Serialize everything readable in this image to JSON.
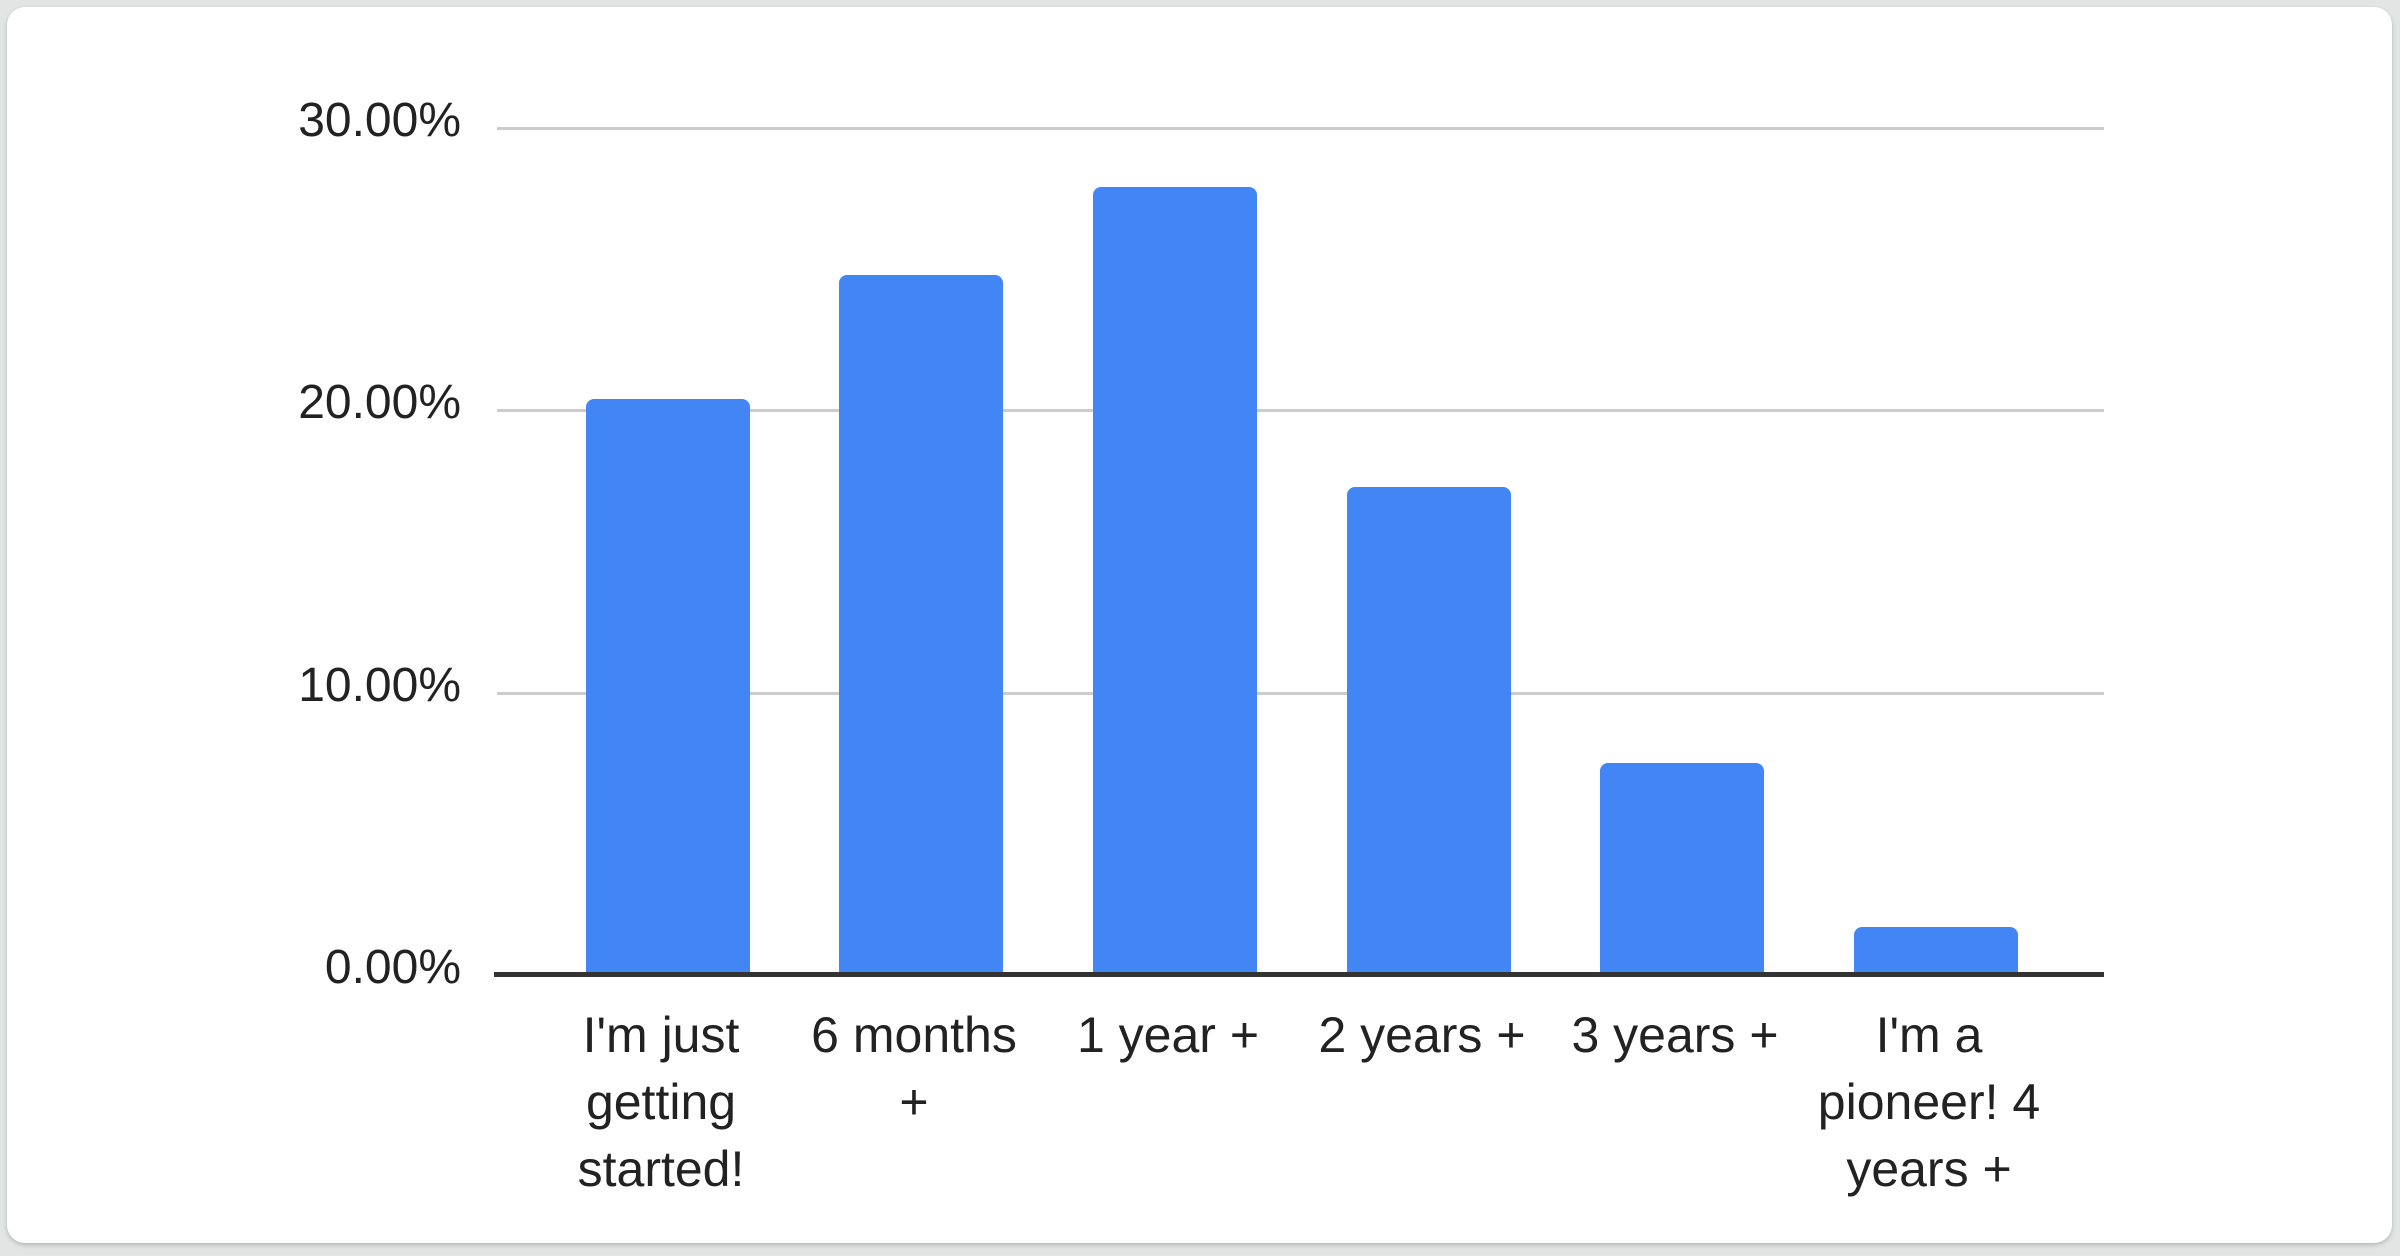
{
  "page": {
    "background_color": "#e2e5e4",
    "card_background_color": "#ffffff"
  },
  "chart_data": {
    "type": "bar",
    "categories": [
      "I'm just getting started!",
      "6 months +",
      "1 year +",
      "2 years +",
      "3 years +",
      "I'm a pioneer! 4 years +"
    ],
    "values": [
      20.4,
      24.8,
      27.9,
      17.3,
      7.5,
      1.7
    ],
    "value_unit": "%",
    "ylim": [
      0,
      30
    ],
    "yticks": [
      {
        "value": 30,
        "label": "30.00%"
      },
      {
        "value": 20,
        "label": "20.00%"
      },
      {
        "value": 10,
        "label": "10.00%"
      },
      {
        "value": 0,
        "label": "0.00%"
      }
    ],
    "grid": true,
    "legend_position": "none",
    "bar_color": "#4285f4",
    "gridline_color": "#cccccc",
    "axis_color": "#333333",
    "label_color": "#222222"
  }
}
